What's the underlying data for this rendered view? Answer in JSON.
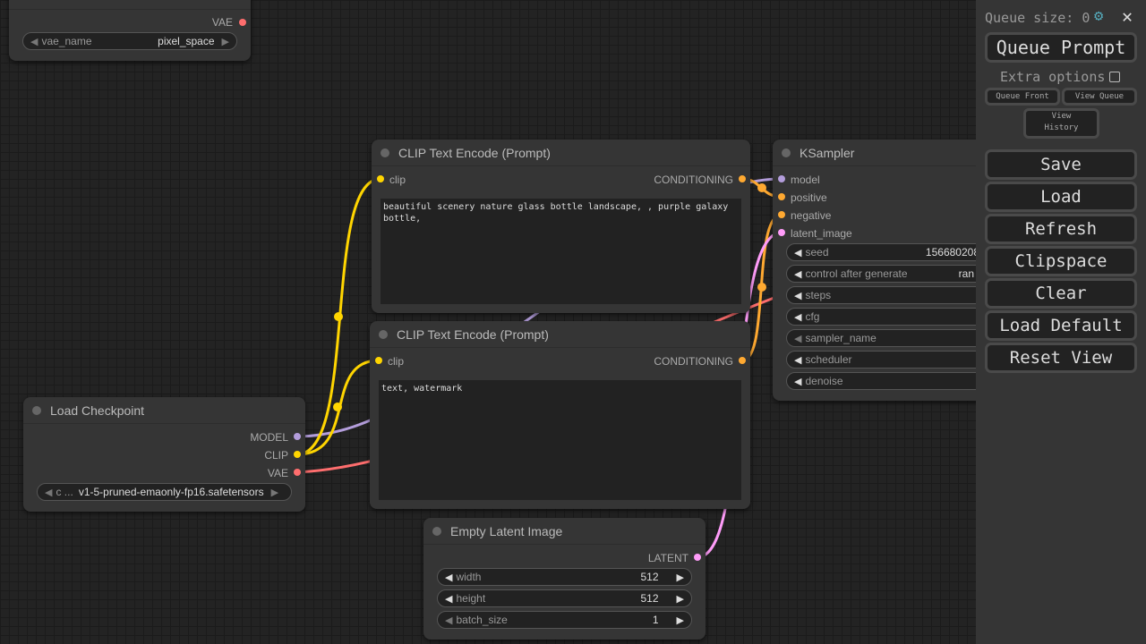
{
  "colors": {
    "model": "#b39ddb",
    "clip": "#ffd500",
    "vae": "#ff6e6e",
    "conditioning": "#ffa931",
    "latent": "#ff9cf9"
  },
  "vae_loader": {
    "output": "VAE",
    "widget": {
      "label": "vae_name",
      "value": "pixel_space"
    }
  },
  "clip_pos": {
    "title": "CLIP Text Encode (Prompt)",
    "input": "clip",
    "output": "CONDITIONING",
    "text": "beautiful scenery nature glass bottle landscape, , purple galaxy bottle,"
  },
  "clip_neg": {
    "title": "CLIP Text Encode (Prompt)",
    "input": "clip",
    "output": "CONDITIONING",
    "text": "text, watermark"
  },
  "checkpoint": {
    "title": "Load Checkpoint",
    "outputs": [
      "MODEL",
      "CLIP",
      "VAE"
    ],
    "widget": {
      "label": "c ...",
      "value": "v1-5-pruned-emaonly-fp16.safetensors"
    }
  },
  "latent": {
    "title": "Empty Latent Image",
    "output": "LATENT",
    "widgets": [
      {
        "label": "width",
        "value": "512"
      },
      {
        "label": "height",
        "value": "512"
      },
      {
        "label": "batch_size",
        "value": "1"
      }
    ]
  },
  "ksampler": {
    "title": "KSampler",
    "inputs": [
      "model",
      "positive",
      "negative",
      "latent_image"
    ],
    "widgets": [
      {
        "label": "seed",
        "value": "156680208"
      },
      {
        "label": "control after generate",
        "value": "ran"
      },
      {
        "label": "steps",
        "value": ""
      },
      {
        "label": "cfg",
        "value": ""
      },
      {
        "label": "sampler_name",
        "value": ""
      },
      {
        "label": "scheduler",
        "value": ""
      },
      {
        "label": "denoise",
        "value": ""
      }
    ]
  },
  "panel": {
    "queue_size": "Queue size: 0",
    "queue_prompt": "Queue Prompt",
    "extra_options": "Extra options",
    "queue_front": "Queue Front",
    "view_queue": "View Queue",
    "view_history": "View History",
    "buttons": [
      "Save",
      "Load",
      "Refresh",
      "Clipspace",
      "Clear",
      "Load Default",
      "Reset View"
    ]
  }
}
